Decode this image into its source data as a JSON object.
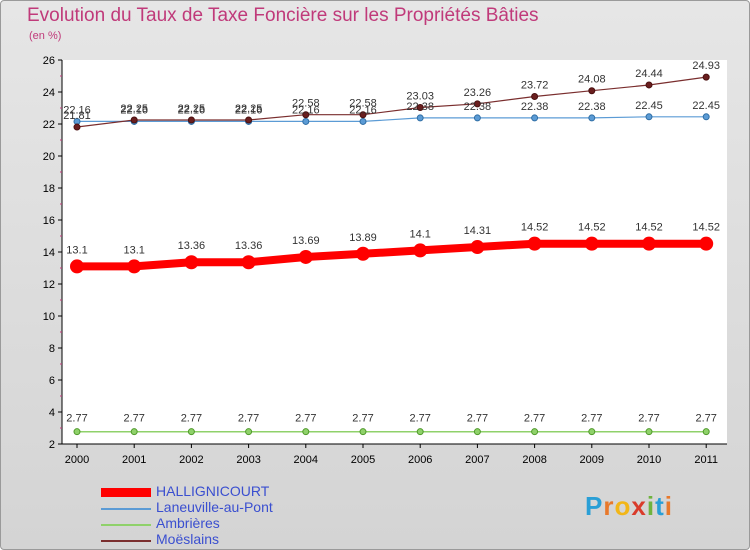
{
  "title": "Evolution du Taux de Taxe Foncière sur les Propriétés Bâties",
  "unit_label": "(en %)",
  "logo": {
    "letters": [
      "P",
      "r",
      "o",
      "x",
      "i",
      "t",
      "i"
    ],
    "colors": [
      "#2a9fd6",
      "#e8792b",
      "#f2b618",
      "#d93b2b",
      "#6fb33e",
      "#2a9fd6",
      "#e8792b"
    ]
  },
  "chart_data": {
    "type": "line",
    "title": "Evolution du Taux de Taxe Foncière sur les Propriétés Bâties",
    "ylabel": "(en %)",
    "xlabel": "",
    "x": [
      "2000",
      "2001",
      "2002",
      "2003",
      "2004",
      "2005",
      "2006",
      "2007",
      "2008",
      "2009",
      "2010",
      "2011"
    ],
    "ylim": [
      2,
      26
    ],
    "yticks": [
      2,
      4,
      6,
      8,
      10,
      12,
      14,
      16,
      18,
      20,
      22,
      24,
      26
    ],
    "grid": false,
    "legend_position": "bottom-left",
    "series": [
      {
        "name": "HALLIGNICOURT",
        "color": "#ff0000",
        "values": [
          13.1,
          13.1,
          13.36,
          13.36,
          13.69,
          13.89,
          14.1,
          14.31,
          14.52,
          14.52,
          14.52,
          14.52
        ],
        "labels": [
          "13.1",
          "13.1",
          "13.36",
          "13.36",
          "13.69",
          "13.89",
          "14.1",
          "14.31",
          "14.52",
          "14.52",
          "14.52",
          "14.52"
        ]
      },
      {
        "name": "Laneuville-au-Pont",
        "color": "#5b9bd5",
        "values": [
          22.16,
          22.16,
          22.16,
          22.16,
          22.16,
          22.16,
          22.38,
          22.38,
          22.38,
          22.38,
          22.45,
          22.45
        ],
        "labels": [
          "22.16",
          "22.16",
          "22.16",
          "22.16",
          "22.16",
          "22.16",
          "22.38",
          "22.38",
          "22.38",
          "22.38",
          "22.45",
          "22.45"
        ]
      },
      {
        "name": "Ambrières",
        "color": "#8fd16a",
        "values": [
          2.77,
          2.77,
          2.77,
          2.77,
          2.77,
          2.77,
          2.77,
          2.77,
          2.77,
          2.77,
          2.77,
          2.77
        ],
        "labels": [
          "2.77",
          "2.77",
          "2.77",
          "2.77",
          "2.77",
          "2.77",
          "2.77",
          "2.77",
          "2.77",
          "2.77",
          "2.77",
          "2.77"
        ]
      },
      {
        "name": "Moëslains",
        "color": "#7a2e2e",
        "values": [
          21.81,
          22.25,
          22.25,
          22.25,
          22.58,
          22.58,
          23.03,
          23.26,
          23.72,
          24.08,
          24.44,
          24.93
        ],
        "labels": [
          "21.81",
          "22.25",
          "22.25",
          "22.25",
          "22.58",
          "22.58",
          "23.03",
          "23.26",
          "23.72",
          "24.08",
          "24.44",
          "24.93"
        ]
      }
    ]
  }
}
